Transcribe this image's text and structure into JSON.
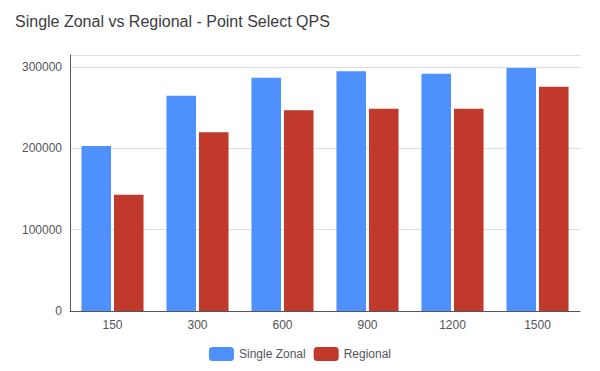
{
  "chart_data": {
    "type": "bar",
    "title": "Single Zonal vs Regional - Point Select QPS",
    "categories": [
      "150",
      "300",
      "600",
      "900",
      "1200",
      "1500"
    ],
    "series": [
      {
        "name": "Single Zonal",
        "color": "#4d90fe",
        "values": [
          203000,
          265000,
          287000,
          295000,
          292000,
          299000
        ]
      },
      {
        "name": "Regional",
        "color": "#c0392b",
        "values": [
          143000,
          220000,
          247000,
          249000,
          249000,
          276000
        ]
      }
    ],
    "ylim": [
      0,
      315000
    ],
    "yticks": [
      0,
      100000,
      200000,
      300000
    ],
    "grid": true,
    "legend": "bottom"
  }
}
